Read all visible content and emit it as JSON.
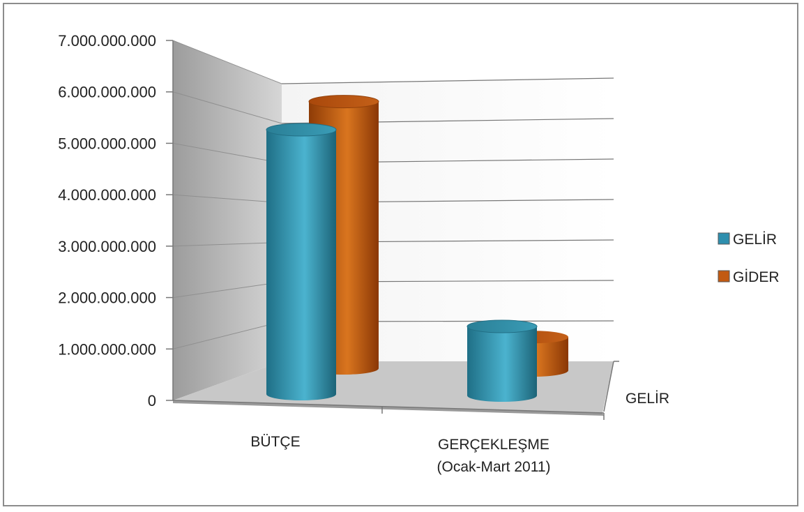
{
  "chart_data": {
    "type": "bar",
    "style": "3d-cylinder",
    "categories": [
      "BÜTÇE",
      "GERÇEKLEŞME (Ocak-Mart 2011)"
    ],
    "category_lines": [
      [
        "BÜTÇE"
      ],
      [
        "GERÇEKLEŞME",
        "(Ocak-Mart 2011)"
      ]
    ],
    "series": [
      {
        "name": "GELİR",
        "values": [
          5550000000,
          1450000000
        ],
        "color": "#2e8fae"
      },
      {
        "name": "GİDER",
        "values": [
          5600000000,
          700000000
        ],
        "color": "#c25a12"
      }
    ],
    "ylim": [
      0,
      7000000000
    ],
    "y_ticks": [
      "0",
      "1.000.000.000",
      "2.000.000.000",
      "3.000.000.000",
      "4.000.000.000",
      "5.000.000.000",
      "6.000.000.000",
      "7.000.000.000"
    ],
    "depth_axis_label": "GELİR",
    "legend_position": "right",
    "grid": true
  }
}
